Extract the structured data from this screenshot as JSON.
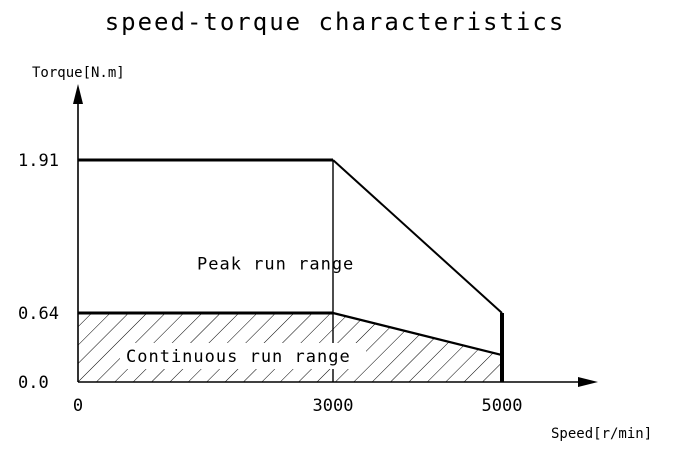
{
  "chart_data": {
    "type": "area",
    "title": "speed-torque characteristics",
    "xlabel": "Speed[r/min]",
    "ylabel": "Torque[N.m]",
    "xlim": [
      0,
      6000
    ],
    "ylim": [
      0,
      2.4
    ],
    "x_ticks": [
      {
        "value": 0,
        "label": "0"
      },
      {
        "value": 3000,
        "label": "3000"
      },
      {
        "value": 5000,
        "label": "5000"
      }
    ],
    "y_ticks": [
      {
        "value": 0,
        "label": "0.0"
      },
      {
        "value": 0.64,
        "label": "0.64"
      },
      {
        "value": 1.91,
        "label": "1.91"
      }
    ],
    "series": [
      {
        "x": [
          0,
          3000,
          5000,
          5000
        ],
        "y": [
          1.91,
          1.91,
          0.64,
          0
        ]
      },
      {
        "x": [
          0,
          3000,
          5000
        ],
        "y": [
          0.64,
          0.64,
          0.25
        ]
      }
    ],
    "regions": [
      {
        "label": "Peak run range",
        "at": {
          "x": 1400,
          "y": 1.05
        },
        "hatched": false
      },
      {
        "label": "Continuous run range",
        "at": {
          "x": 1800,
          "y": 0.25
        },
        "hatched": true
      }
    ],
    "grid": false,
    "legend": "none"
  }
}
